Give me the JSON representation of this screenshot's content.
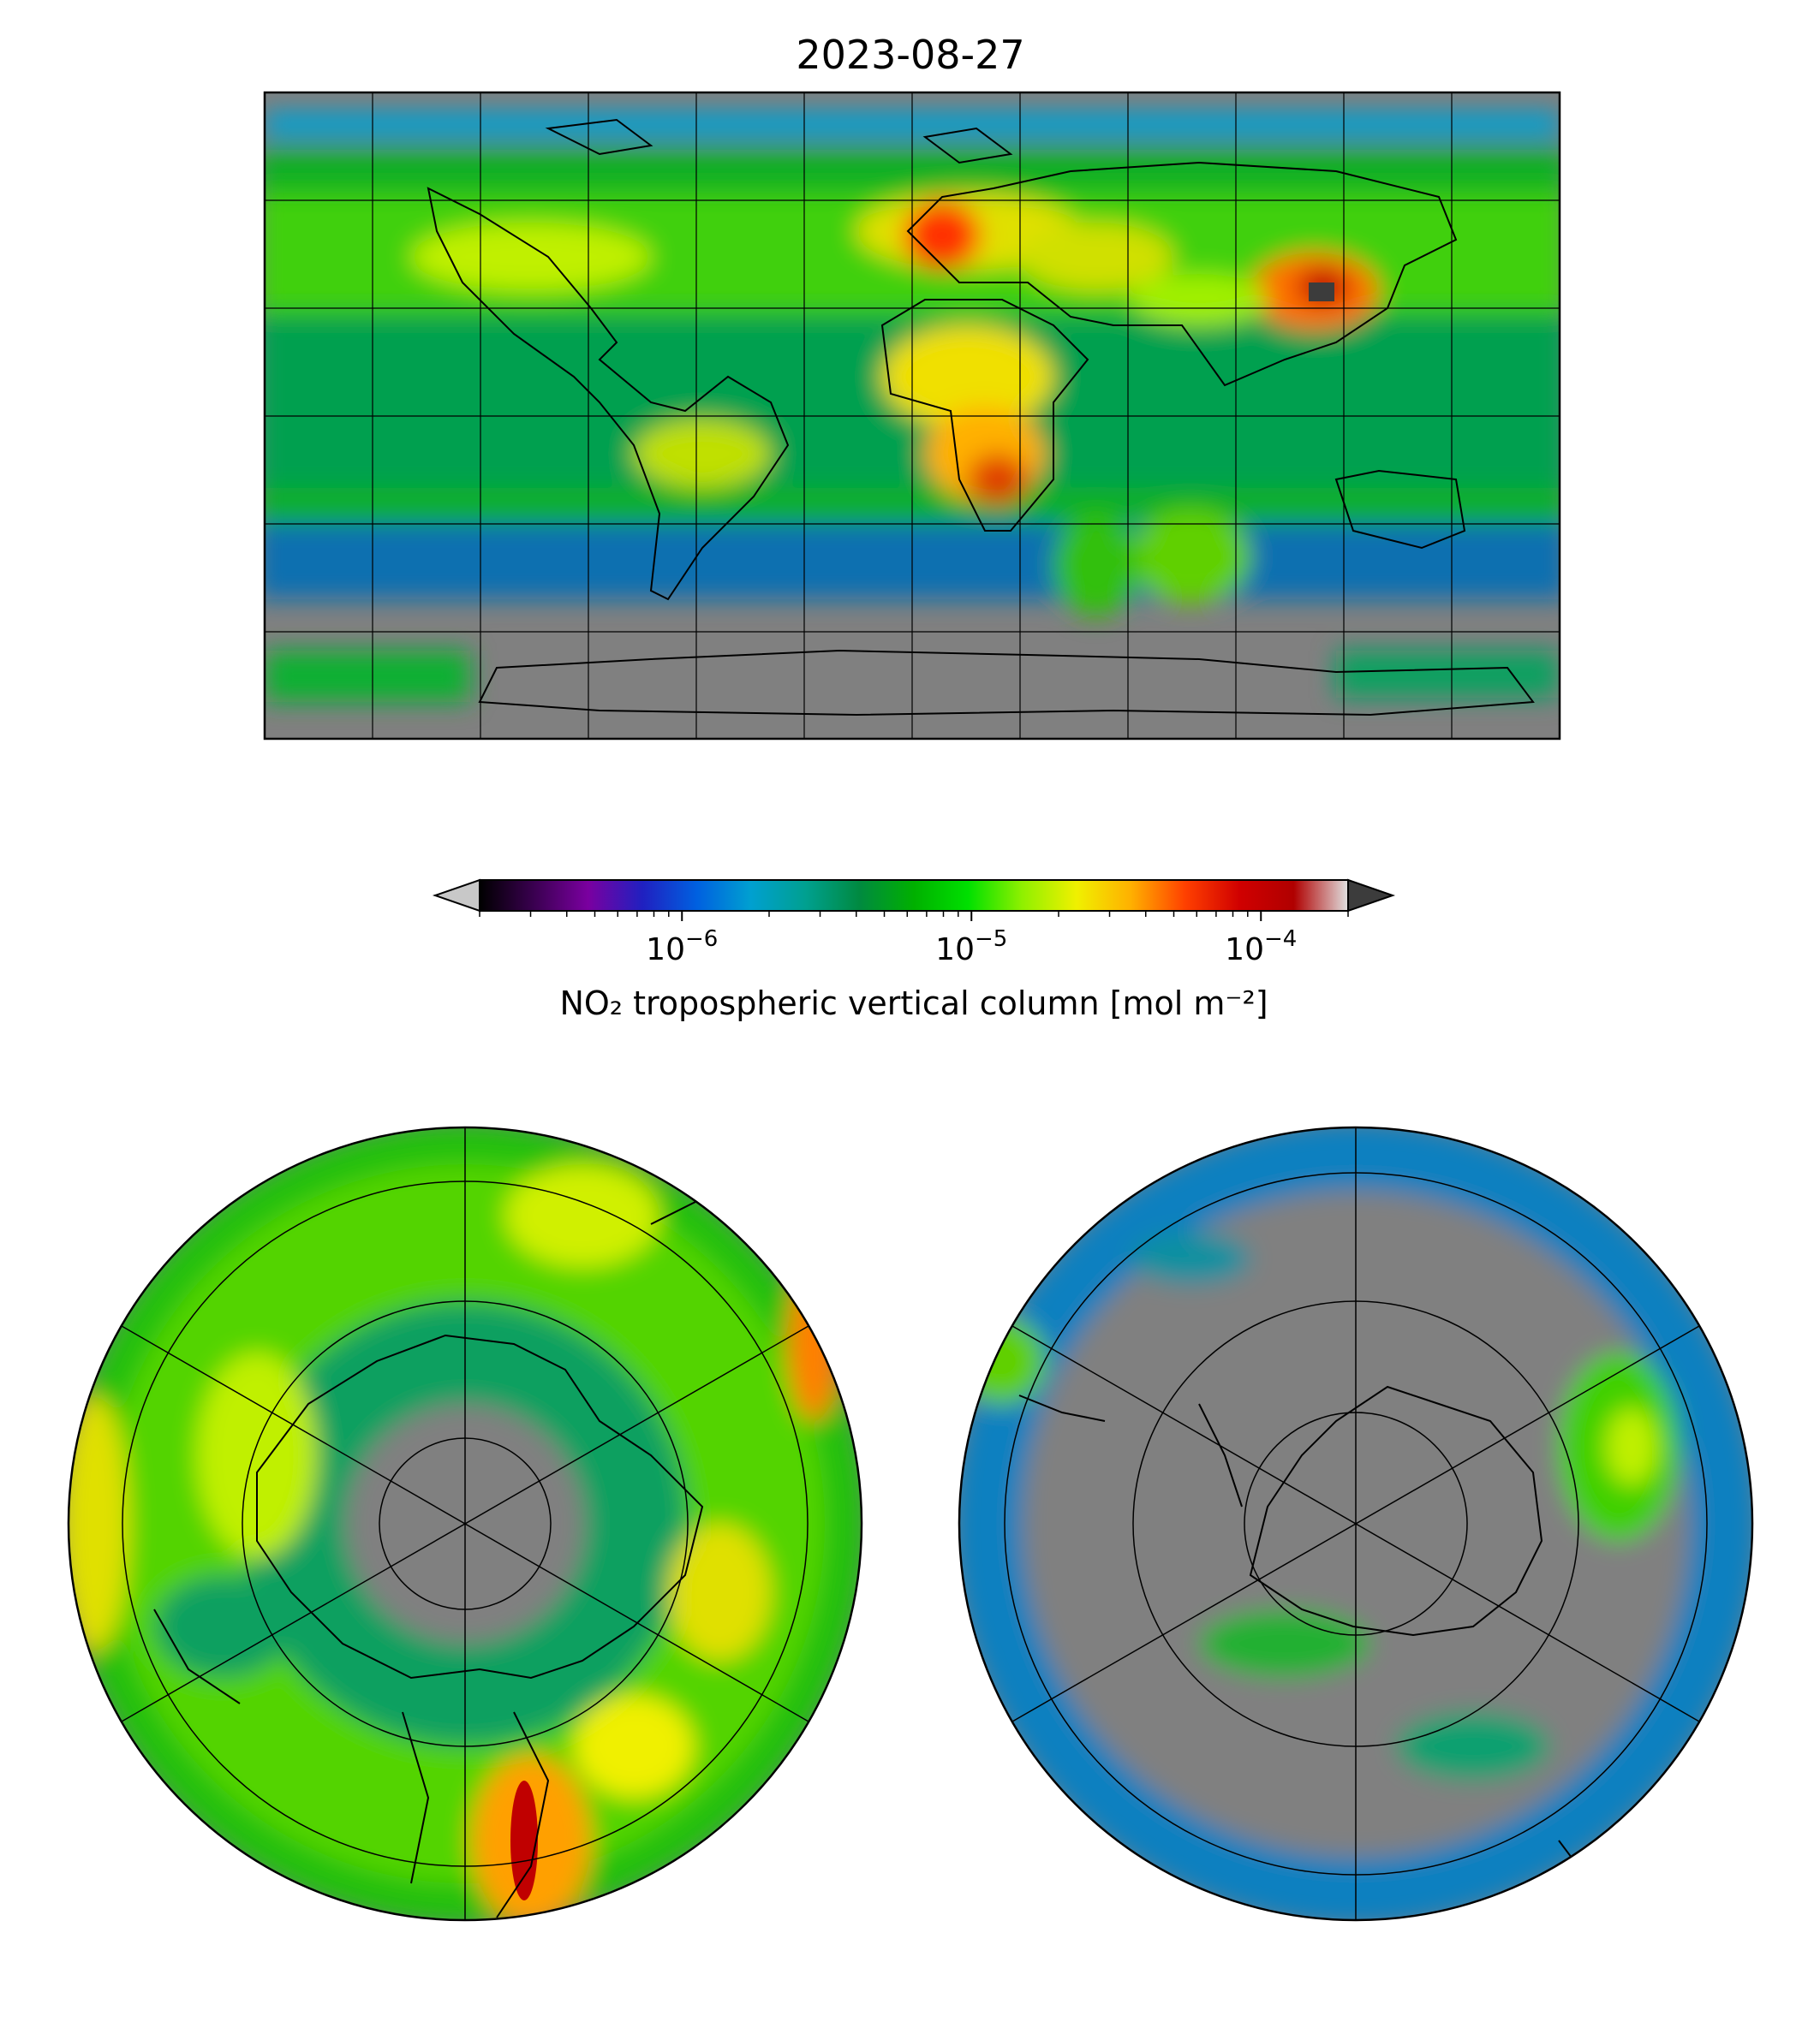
{
  "title": "2023-08-27",
  "colorbar": {
    "label": "NO₂ tropospheric vertical column [mol m⁻²]",
    "scale": "log",
    "range": [
      2e-07,
      0.0002
    ],
    "extend": "both",
    "under_color": "#c8c8c8",
    "over_color": "#3c3c3c",
    "stops": [
      "#000000",
      "#3a0050",
      "#7a00a0",
      "#2020c0",
      "#0060e0",
      "#00a0d0",
      "#00a090",
      "#008a40",
      "#00b000",
      "#00e000",
      "#90f000",
      "#f0f000",
      "#ffb000",
      "#ff4000",
      "#d00000",
      "#b00000",
      "#e0e0e0"
    ],
    "major_ticks": [
      {
        "base": "10",
        "exp": "−6",
        "value": 1e-06
      },
      {
        "base": "10",
        "exp": "−5",
        "value": 1e-05
      },
      {
        "base": "10",
        "exp": "−4",
        "value": 0.0001
      }
    ]
  },
  "maps": {
    "global": {
      "projection": "PlateCarree",
      "extent_lon": [
        -180,
        180
      ],
      "extent_lat": [
        -90,
        90
      ],
      "no_data_color": "#808080",
      "gridlines": true,
      "grid_lon_step": 30,
      "grid_lat_step": 30
    },
    "north_polar": {
      "projection": "NorthPolarStereo",
      "center": "North Pole",
      "no_data_color": "#808080",
      "gridlines": true
    },
    "south_polar": {
      "projection": "SouthPolarStereo",
      "center": "South Pole",
      "no_data_color": "#808080",
      "gridlines": true
    }
  }
}
